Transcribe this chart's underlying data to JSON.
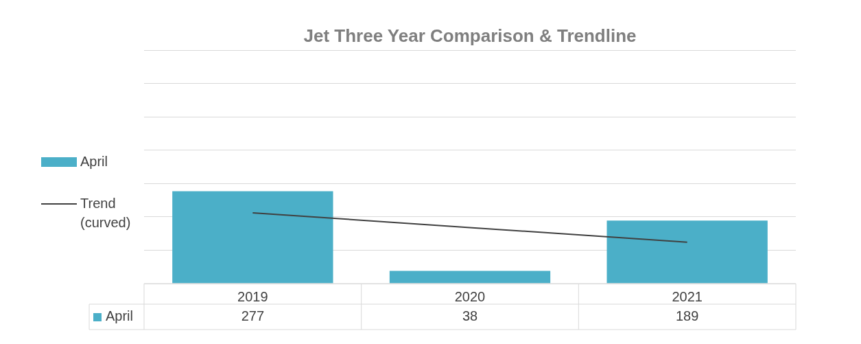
{
  "chart_data": {
    "type": "bar",
    "title": "Jet Three Year Comparison & Trendline",
    "categories": [
      "2019",
      "2020",
      "2021"
    ],
    "series": [
      {
        "name": "April",
        "color": "#4bafc8",
        "values": [
          277,
          38,
          189
        ],
        "value_labels": [
          "277",
          "38",
          "189"
        ]
      },
      {
        "name": "Trend (curved)",
        "type": "line",
        "color": "#404040",
        "values": [
          212,
          168,
          124
        ],
        "marker": "none"
      }
    ],
    "ylim": [
      0,
      700
    ],
    "yticks": [
      {
        "value": 0,
        "label": null
      },
      {
        "value": 100,
        "label": null
      },
      {
        "value": 200,
        "label": null
      },
      {
        "value": 300,
        "label": null
      },
      {
        "value": 400,
        "label": null
      },
      {
        "value": 500,
        "label": null
      },
      {
        "value": 600,
        "label": null
      },
      {
        "value": 700,
        "label": null
      }
    ],
    "tick_labels": "x",
    "grid": "y",
    "legend": "left"
  }
}
